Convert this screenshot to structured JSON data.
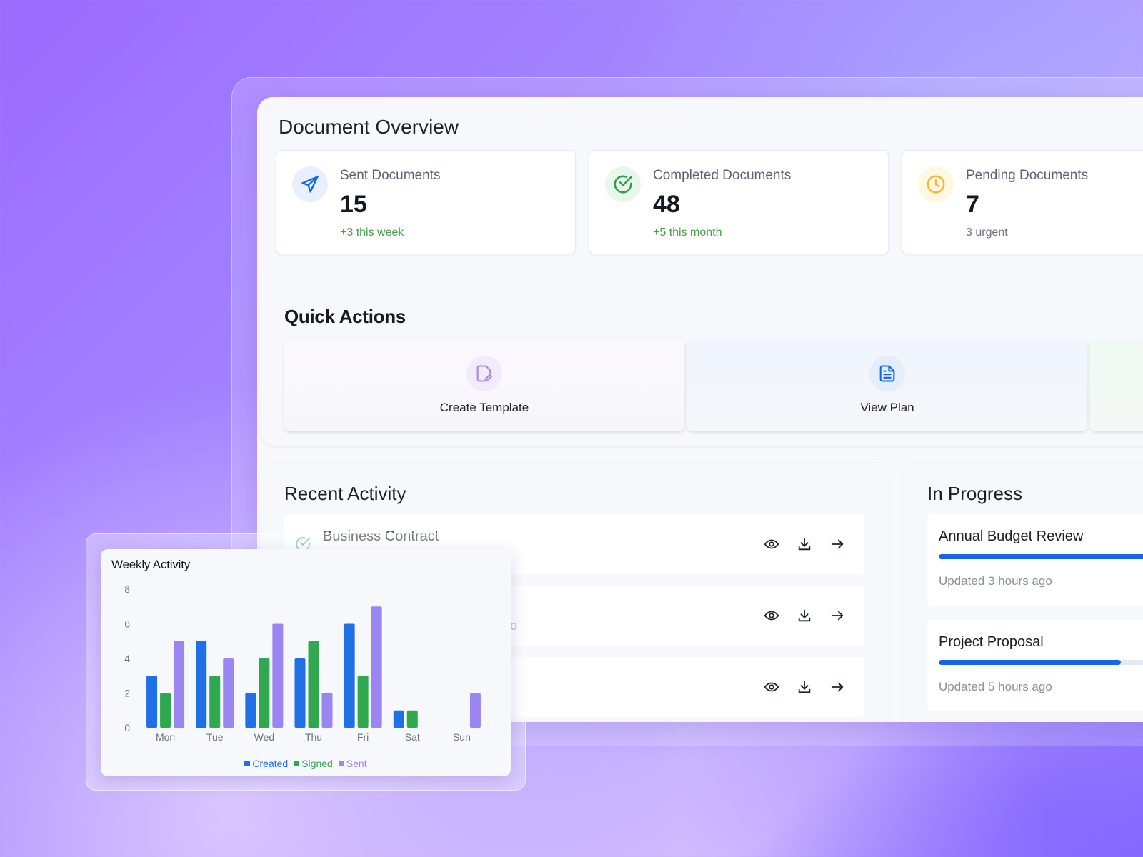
{
  "overview": {
    "title": "Document Overview",
    "stats": [
      {
        "label": "Sent Documents",
        "value": "15",
        "sub": "+3 this week",
        "icon": "send-icon",
        "sub_color": "#43a047",
        "icon_bg": "#e8f0fd",
        "icon_color": "#1565e6"
      },
      {
        "label": "Completed Documents",
        "value": "48",
        "sub": "+5 this month",
        "icon": "check-circle-icon",
        "sub_color": "#43a047",
        "icon_bg": "#e9f6ec",
        "icon_color": "#2e9e48"
      },
      {
        "label": "Pending Documents",
        "value": "7",
        "sub": "3 urgent",
        "icon": "clock-icon",
        "sub_color": "#6b7280",
        "icon_bg": "#fff7e0",
        "icon_color": "#f5b82e"
      }
    ]
  },
  "quick_actions": {
    "title": "Quick Actions",
    "items": [
      {
        "label": "Create Template",
        "icon": "edit-document-icon"
      },
      {
        "label": "View Plan",
        "icon": "document-icon"
      }
    ]
  },
  "recent_activity": {
    "title": "Recent Activity",
    "rows": [
      {
        "title": "Business Contract",
        "sub": ""
      },
      {
        "title": "",
        "sub": "go"
      },
      {
        "title": "",
        "sub": ""
      }
    ]
  },
  "in_progress": {
    "title": "In Progress",
    "items": [
      {
        "title": "Annual Budget Review",
        "updated": "Updated 3 hours ago",
        "progress": 1.0
      },
      {
        "title": "Project Proposal",
        "updated": "Updated 5 hours ago",
        "progress": 0.75
      }
    ]
  },
  "chart_data": {
    "type": "bar",
    "title": "Weekly Activity",
    "categories": [
      "Mon",
      "Tue",
      "Wed",
      "Thu",
      "Fri",
      "Sat",
      "Sun"
    ],
    "series": [
      {
        "name": "Created",
        "values": [
          3,
          5,
          2,
          4,
          6,
          1,
          0
        ],
        "color": "#1f6fe5"
      },
      {
        "name": "Signed",
        "values": [
          2,
          3,
          4,
          5,
          3,
          1,
          0
        ],
        "color": "#2fa84f"
      },
      {
        "name": "Sent",
        "values": [
          5,
          4,
          6,
          2,
          7,
          0,
          2
        ],
        "color": "#9b85f0"
      }
    ],
    "ylim": [
      0,
      8
    ],
    "yticks": [
      "0",
      "2",
      "4",
      "6",
      "8"
    ],
    "legend": "bottom",
    "grid": false
  },
  "colors": {
    "accent": "#1565e6",
    "success": "#43a047",
    "warning": "#f5b82e"
  }
}
